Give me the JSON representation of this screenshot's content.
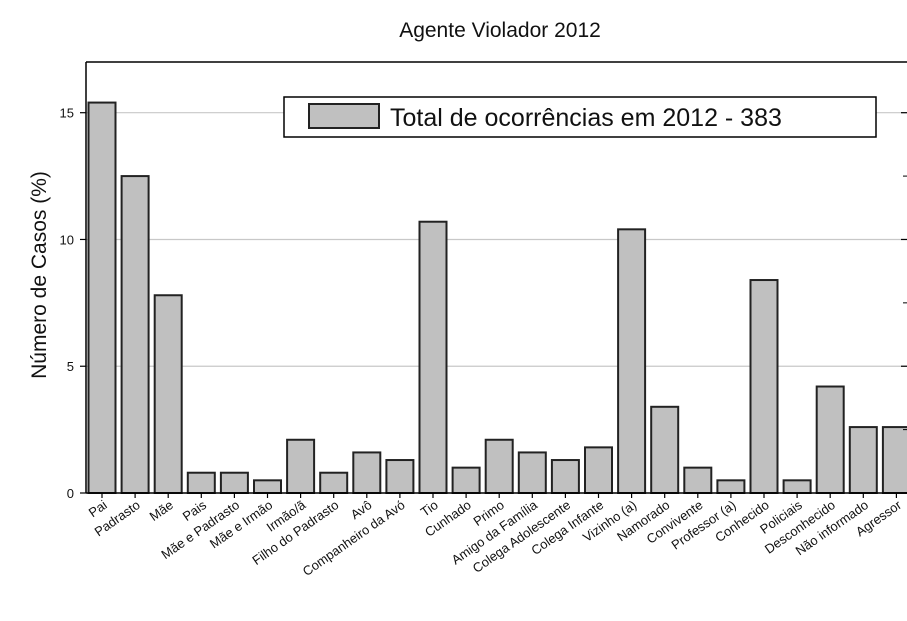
{
  "chart_data": {
    "type": "bar",
    "title": "Agente Violador 2012",
    "xlabel": "",
    "ylabel": "Número de Casos (%)",
    "ylim": [
      0,
      17
    ],
    "yticks": [
      0,
      5,
      10,
      15
    ],
    "grid": true,
    "legend": {
      "position": "top-right",
      "entries": [
        "Total de ocorrências em 2012 - 383"
      ]
    },
    "colors": {
      "bar_fill": "#c0c0c0",
      "bar_stroke": "#222222",
      "grid": "#c8c8c8",
      "axis": "#000000"
    },
    "categories": [
      "Pai",
      "Padrasto",
      "Mãe",
      "Pais",
      "Mãe e Padrasto",
      "Mãe e Irmão",
      "Irmão/ã",
      "Filho do Padrasto",
      "Avô",
      "Companheiro da Avó",
      "Tio",
      "Cunhado",
      "Primo",
      "Amigo da Família",
      "Colega Adolescente",
      "Colega Infante",
      "Vizinho (a)",
      "Namorado",
      "Convivente",
      "Professor (a)",
      "Conhecido",
      "Policiais",
      "Desconhecido",
      "Não informado",
      "Agressor"
    ],
    "values": [
      15.4,
      12.5,
      7.8,
      0.8,
      0.8,
      0.5,
      2.1,
      0.8,
      1.6,
      1.3,
      10.7,
      1.0,
      2.1,
      1.6,
      1.3,
      1.8,
      10.4,
      3.4,
      1.0,
      0.5,
      8.4,
      0.5,
      4.2,
      2.6,
      2.6
    ]
  }
}
